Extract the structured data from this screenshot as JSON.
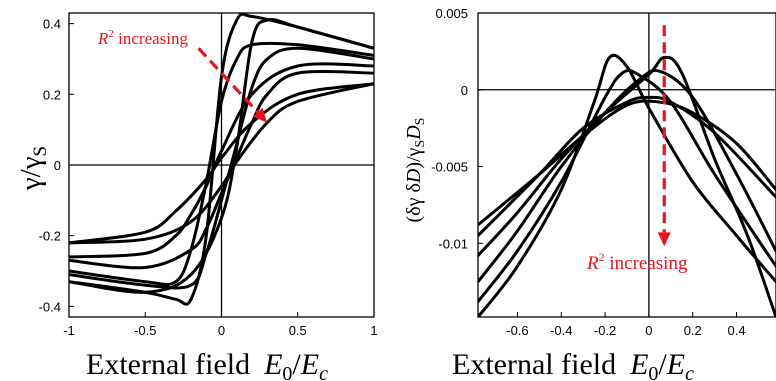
{
  "chart_data": [
    {
      "type": "line",
      "xlabel_main": "External field",
      "xlabel_math": {
        "E": "E",
        "E_sub": "0",
        "slash": "/",
        "Ec": "E",
        "Ec_sub": "c"
      },
      "ylabel": {
        "gamma": "γ",
        "slash": "/",
        "gammaS": "γ",
        "gammaS_sub": "S"
      },
      "xlim": [
        -1,
        1
      ],
      "ylim": [
        -0.43,
        0.43
      ],
      "xticks": [
        "-1",
        "-0.5",
        "0",
        "0.5",
        "1"
      ],
      "xtick_values": [
        -1,
        -0.5,
        0,
        0.5,
        1
      ],
      "yticks": [
        "-0.4",
        "-0.2",
        "0",
        "0.2",
        "0.4"
      ],
      "ytick_values": [
        -0.4,
        -0.2,
        0,
        0.2,
        0.4
      ],
      "annotation": {
        "R": "R",
        "sup": "2",
        "rest": " increasing"
      },
      "arrow": {
        "from": [
          -0.15,
          0.33
        ],
        "to": [
          0.3,
          0.12
        ]
      },
      "series": [
        {
          "x": [
            -1,
            -0.5,
            -0.3,
            -0.2,
            -0.1,
            0,
            0.1,
            0.2,
            0.5,
            1
          ],
          "y": [
            -0.33,
            -0.36,
            -0.38,
            -0.38,
            -0.2,
            0.25,
            0.41,
            0.42,
            0.39,
            0.33
          ]
        },
        {
          "x": [
            -1,
            -0.5,
            -0.2,
            0,
            0.1,
            0.2,
            0.3,
            0.5,
            1
          ],
          "y": [
            -0.33,
            -0.36,
            -0.31,
            -0.15,
            0.05,
            0.35,
            0.41,
            0.39,
            0.33
          ]
        },
        {
          "x": [
            -1,
            -0.5,
            -0.3,
            -0.2,
            -0.1,
            0,
            0.1,
            0.2,
            0.5,
            1
          ],
          "y": [
            -0.3,
            -0.33,
            -0.33,
            -0.24,
            -0.05,
            0.18,
            0.3,
            0.34,
            0.34,
            0.31
          ]
        },
        {
          "x": [
            -1,
            -0.5,
            -0.2,
            -0.1,
            0,
            0.1,
            0.2,
            0.3,
            0.5,
            1
          ],
          "y": [
            -0.31,
            -0.34,
            -0.34,
            -0.25,
            -0.1,
            0.06,
            0.22,
            0.3,
            0.33,
            0.3
          ]
        },
        {
          "x": [
            -1,
            -0.5,
            -0.3,
            -0.2,
            -0.1,
            0,
            0.2,
            0.5,
            1
          ],
          "y": [
            -0.26,
            -0.25,
            -0.2,
            -0.14,
            -0.06,
            0.04,
            0.2,
            0.28,
            0.28
          ]
        },
        {
          "x": [
            -1,
            -0.5,
            -0.2,
            -0.1,
            0,
            0.1,
            0.2,
            0.3,
            0.5,
            1
          ],
          "y": [
            -0.27,
            -0.29,
            -0.24,
            -0.18,
            -0.08,
            0.02,
            0.12,
            0.2,
            0.26,
            0.26
          ]
        },
        {
          "x": [
            -1,
            -0.5,
            -0.3,
            -0.1,
            0,
            0.2,
            0.5,
            1
          ],
          "y": [
            -0.22,
            -0.19,
            -0.13,
            -0.04,
            0.02,
            0.12,
            0.2,
            0.23
          ]
        },
        {
          "x": [
            -1,
            -0.5,
            -0.2,
            0,
            0.1,
            0.3,
            0.5,
            1
          ],
          "y": [
            -0.22,
            -0.21,
            -0.16,
            -0.06,
            0.01,
            0.12,
            0.18,
            0.23
          ]
        }
      ]
    },
    {
      "type": "line",
      "xlabel_main": "External field",
      "xlabel_math": {
        "E": "E",
        "E_sub": "0",
        "slash": "/",
        "Ec": "E",
        "Ec_sub": "c"
      },
      "ylabel": {
        "pre": "(δγ δ",
        "D": "D",
        "post": ")/γ",
        "S1": "S",
        "D2": "D",
        "S2": "S"
      },
      "xlim": [
        -0.78,
        0.58
      ],
      "ylim": [
        -0.0148,
        0.005
      ],
      "xticks": [
        "-0.6",
        "-0.4",
        "-0.2",
        "0",
        "0.2",
        "0.4"
      ],
      "xtick_values": [
        -0.6,
        -0.4,
        -0.2,
        0,
        0.2,
        0.4
      ],
      "yticks": [
        "0.005",
        "0",
        "-0.005",
        "-0.01"
      ],
      "ytick_values": [
        0.005,
        0,
        -0.005,
        -0.01
      ],
      "annotation": {
        "R": "R",
        "sup": "2",
        "rest": " increasing"
      },
      "arrow": {
        "from": [
          0.07,
          0.0042
        ],
        "to": [
          0.07,
          -0.0102
        ]
      },
      "series": [
        {
          "x": [
            -0.78,
            -0.6,
            -0.4,
            -0.25,
            -0.18,
            -0.1,
            0,
            0.2,
            0.4,
            0.58
          ],
          "y": [
            -0.0148,
            -0.0115,
            -0.0065,
            -0.0008,
            0.0021,
            0.0015,
            -0.0012,
            -0.006,
            -0.0095,
            -0.0125
          ]
        },
        {
          "x": [
            -0.78,
            -0.6,
            -0.4,
            -0.2,
            -0.12,
            -0.05,
            0.1,
            0.3,
            0.58
          ],
          "y": [
            -0.0138,
            -0.0105,
            -0.006,
            -0.0005,
            0.0011,
            0.001,
            -0.0008,
            -0.0055,
            -0.0115
          ]
        },
        {
          "x": [
            -0.78,
            -0.6,
            -0.4,
            -0.2,
            -0.05,
            0.05,
            0.2,
            0.4,
            0.58
          ],
          "y": [
            -0.0125,
            -0.0092,
            -0.005,
            -0.0015,
            0.0006,
            0.0012,
            -0.0005,
            -0.0055,
            -0.0105
          ]
        },
        {
          "x": [
            -0.78,
            -0.6,
            -0.4,
            -0.2,
            0,
            0.07,
            0.15,
            0.3,
            0.45,
            0.58
          ],
          "y": [
            -0.0108,
            -0.008,
            -0.0045,
            -0.0015,
            0.001,
            0.0021,
            0.0011,
            -0.0045,
            -0.0095,
            -0.0148
          ]
        },
        {
          "x": [
            -0.78,
            -0.5,
            -0.3,
            -0.1,
            0,
            0.1,
            0.3,
            0.58
          ],
          "y": [
            -0.0095,
            -0.0055,
            -0.0025,
            -0.0008,
            -0.0005,
            -0.0008,
            -0.0028,
            -0.007
          ]
        },
        {
          "x": [
            -0.78,
            -0.5,
            -0.3,
            -0.1,
            0.05,
            0.2,
            0.4,
            0.58
          ],
          "y": [
            -0.0088,
            -0.0055,
            -0.003,
            -0.001,
            -0.0008,
            -0.0015,
            -0.0035,
            -0.0065
          ]
        }
      ]
    }
  ]
}
